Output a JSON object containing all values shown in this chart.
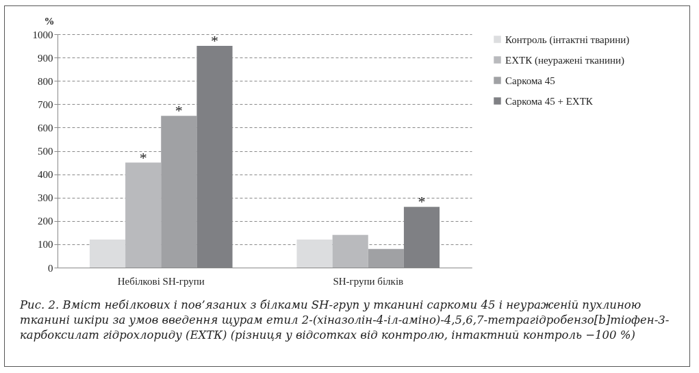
{
  "chart_data": {
    "type": "bar",
    "ylabel": "%",
    "categories": [
      "Небілкові SH-групи",
      "SH-групи білків"
    ],
    "series": [
      {
        "name": "Контроль (інтактні тварини)",
        "color": "#dcdddf",
        "values": [
          120,
          120
        ],
        "value_labels": [
          null,
          null
        ]
      },
      {
        "name": "ЕХТК (неуражені тканини)",
        "color": "#b9babd",
        "values": [
          450,
          140
        ],
        "value_labels": [
          "*",
          null
        ]
      },
      {
        "name": "Саркома 45",
        "color": "#a0a1a4",
        "values": [
          650,
          80
        ],
        "value_labels": [
          "*",
          null
        ]
      },
      {
        "name": "Саркома 45 + ЕХТК",
        "color": "#7f8084",
        "values": [
          950,
          260
        ],
        "value_labels": [
          "*",
          "*"
        ]
      }
    ],
    "ylim": [
      0,
      1000
    ],
    "yticks": [
      0,
      100,
      200,
      300,
      400,
      500,
      600,
      700,
      800,
      900,
      1000
    ],
    "grid": "y",
    "legend": "right",
    "annotations": [
      "Рис. 2. Вміст небілкових і пов’язаних з білками SH-груп у тканині саркоми 45 і неураженій пухлиною тканині шкіри за умов введення щурам етил 2-(хіназолін-4-іл-аміно)-4,5,6,7-тетрагідробензо[b]тіофен-3-карбоксилат гідрохлориду (ЕХТК) (різниця у відсотках від контролю, інтактний контроль −100 %)"
    ]
  }
}
